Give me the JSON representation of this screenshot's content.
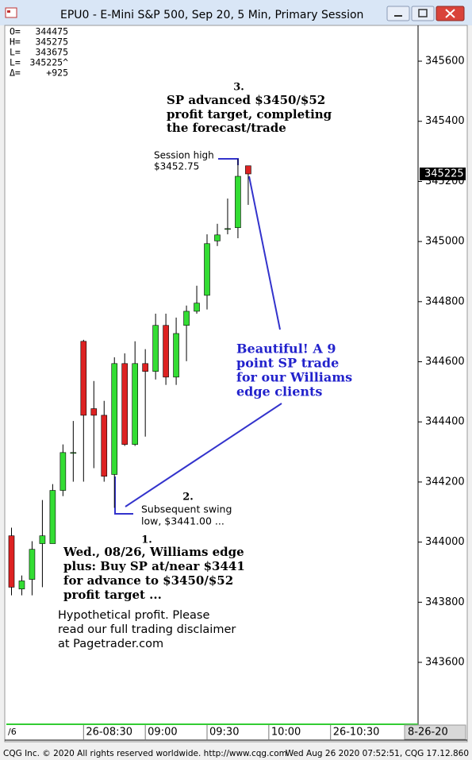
{
  "window_title": "EPU0 - E-Mini S&P 500, Sep 20, 5 Min, Primary Session",
  "stats": [
    {
      "label": "O=",
      "value": "344475"
    },
    {
      "label": "H=",
      "value": "345275"
    },
    {
      "label": "L=",
      "value": "343675"
    },
    {
      "label": "L=",
      "value": "345225^"
    },
    {
      "label": "Δ=",
      "value": "+925"
    }
  ],
  "chart_data": {
    "type": "candlestick",
    "open": [
      344021,
      343844,
      343876,
      343995,
      343995,
      344172,
      344298,
      344668,
      344444,
      344422,
      344225,
      344594,
      344325,
      344594,
      344568,
      344721,
      344549,
      344721,
      344768,
      344821,
      345002,
      345043,
      345046,
      345252
    ],
    "high": [
      344048,
      343889,
      344003,
      344140,
      344193,
      344325,
      344403,
      344673,
      344536,
      344470,
      344615,
      344628,
      344668,
      344642,
      344760,
      344760,
      344747,
      344787,
      344853,
      345024,
      345059,
      345143,
      345275,
      345252
    ],
    "low": [
      343823,
      343823,
      343823,
      343850,
      343995,
      344153,
      344201,
      344201,
      344246,
      344201,
      344114,
      344320,
      344320,
      344351,
      344541,
      344523,
      344523,
      344602,
      344760,
      344774,
      344985,
      345024,
      345011,
      345122
    ],
    "close": [
      343850,
      343871,
      343976,
      344021,
      344172,
      344298,
      344298,
      344422,
      344422,
      344219,
      344594,
      344325,
      344594,
      344568,
      344721,
      344549,
      344694,
      344768,
      344795,
      344993,
      345022,
      345043,
      345217,
      345225
    ],
    "up_color": "#33dd33",
    "down_color": "#dd2222",
    "xlim": [
      -0.5,
      39.5
    ],
    "xticks": [
      {
        "value": 7,
        "label": "26-08:30"
      },
      {
        "value": 13,
        "label": "09:00"
      },
      {
        "value": 19,
        "label": "09:30"
      },
      {
        "value": 25,
        "label": "10:00"
      },
      {
        "value": 31,
        "label": "26-10:30"
      }
    ],
    "x_edge_labels": [
      "/6",
      "8-26-20"
    ],
    "ylim": [
      343394,
      345719
    ],
    "yticks": [
      343600,
      343800,
      344000,
      344200,
      344400,
      344600,
      344800,
      345000,
      345200,
      345400,
      345600
    ],
    "last_price": 345225,
    "annotations": {
      "note3": {
        "number": "3.",
        "lines": [
          "SP advanced $3450/$52",
          "profit target, completing",
          "the forecast/trade"
        ]
      },
      "session_high": [
        "Session high",
        "$3452.75"
      ],
      "beautiful": [
        "Beautiful! A 9",
        "point SP trade",
        "for our Williams",
        "edge clients"
      ],
      "note2": {
        "number": "2.",
        "lines": [
          "Subsequent swing",
          "low, $3441.00 ..."
        ]
      },
      "note1": {
        "number": "1.",
        "lines": [
          "Wed., 08/26, Williams edge",
          "plus: Buy SP at/near $3441",
          "for advance to $3450/$52",
          "profit target ..."
        ]
      },
      "disclaimer": [
        "Hypothetical profit. Please",
        "read our full trading disclaimer",
        "at Pagetrader.com"
      ]
    }
  },
  "footer": {
    "left": "CQG Inc. © 2020 All rights reserved worldwide. http://www.cqg.com",
    "right": "Wed Aug 26 2020 07:52:51, CQG 17.12.860"
  }
}
